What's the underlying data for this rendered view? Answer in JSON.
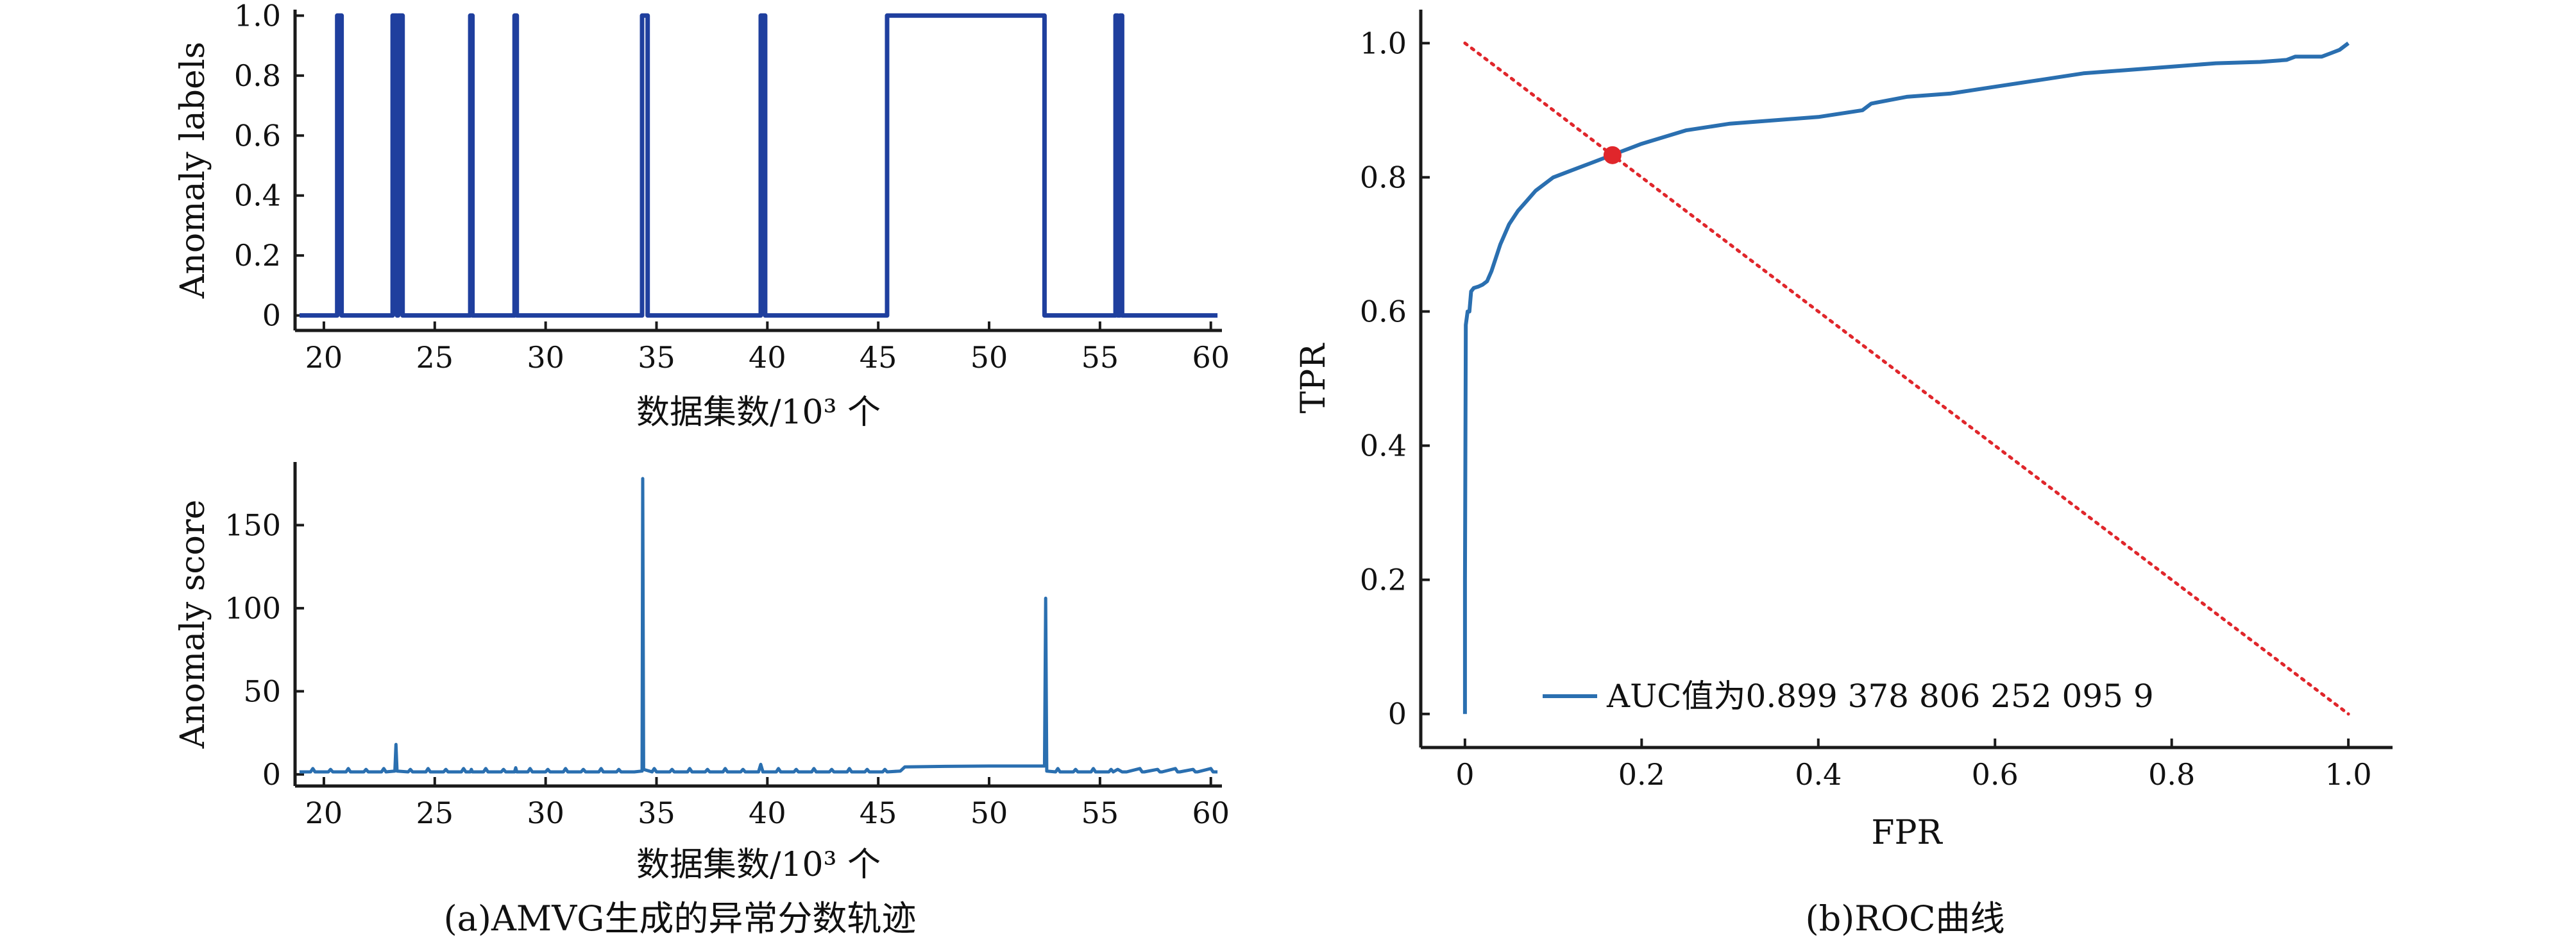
{
  "colors": {
    "axis": "#1a1a1a",
    "label_line": "#1f3f9e",
    "score_line": "#2a6fb0",
    "roc_line": "#2a6fb0",
    "diagonal": "#e0262b",
    "point": "#e0262b"
  },
  "captions": {
    "a": "(a)AMVG生成的异常分数轨迹",
    "b": "(b)ROC曲线"
  },
  "chart_data": [
    {
      "id": "labels",
      "type": "line",
      "ylabel": "Anomaly labels",
      "xlabel": "数据集数/10³ 个",
      "xlim": [
        18.7,
        60.5
      ],
      "ylim": [
        -0.05,
        1.02
      ],
      "xticks": [
        20,
        25,
        30,
        35,
        40,
        45,
        50,
        55,
        60
      ],
      "xtick_labels": [
        "20",
        "25",
        "30",
        "35",
        "40",
        "45",
        "50",
        "55",
        "60"
      ],
      "yticks": [
        0,
        0.2,
        0.4,
        0.6,
        0.8,
        1.0
      ],
      "ytick_labels": [
        "0",
        "0.2",
        "0.4",
        "0.6",
        "0.8",
        "1.0"
      ],
      "series": [
        {
          "x": [
            18.9,
            20.6,
            20.6,
            20.8,
            20.8,
            23.1,
            23.1,
            23.3,
            23.3,
            23.35,
            23.35,
            23.55,
            23.55,
            26.6,
            26.6,
            26.7,
            26.7,
            28.6,
            28.6,
            28.7,
            28.7,
            34.35,
            34.35,
            34.6,
            34.6,
            39.7,
            39.7,
            39.9,
            39.9,
            45.4,
            45.4,
            52.5,
            52.5,
            55.7,
            55.7,
            55.8,
            55.8,
            55.9,
            55.9,
            56.0,
            56.0,
            60.3
          ],
          "y": [
            0,
            0,
            1,
            1,
            0,
            0,
            1,
            1,
            0,
            0,
            1,
            1,
            0,
            0,
            1,
            1,
            0,
            0,
            1,
            1,
            0,
            0,
            1,
            1,
            0,
            0,
            1,
            1,
            0,
            0,
            1,
            1,
            0,
            0,
            1,
            1,
            0,
            0,
            1,
            1,
            0,
            0
          ]
        }
      ]
    },
    {
      "id": "score",
      "type": "line",
      "ylabel": "Anomaly score",
      "xlabel": "数据集数/10³ 个",
      "xlim": [
        18.7,
        60.5
      ],
      "ylim": [
        -7,
        188
      ],
      "xticks": [
        20,
        25,
        30,
        35,
        40,
        45,
        50,
        55,
        60
      ],
      "xtick_labels": [
        "20",
        "25",
        "30",
        "35",
        "40",
        "45",
        "50",
        "55",
        "60"
      ],
      "yticks": [
        0,
        50,
        100,
        150
      ],
      "ytick_labels": [
        "0",
        "50",
        "100",
        "150"
      ],
      "series": [
        {
          "x": [
            18.9,
            19.4,
            19.5,
            19.6,
            20.2,
            20.3,
            20.4,
            21.0,
            21.1,
            21.2,
            21.8,
            21.9,
            22.0,
            22.6,
            22.7,
            22.8,
            23.2,
            23.25,
            23.3,
            23.8,
            23.9,
            24.0,
            24.6,
            24.7,
            24.8,
            25.4,
            25.5,
            25.6,
            26.2,
            26.3,
            26.4,
            26.6,
            26.65,
            26.7,
            27.2,
            27.3,
            27.4,
            28.0,
            28.1,
            28.2,
            28.6,
            28.65,
            28.7,
            29.2,
            29.3,
            29.4,
            30.0,
            30.1,
            30.2,
            30.8,
            30.9,
            31.0,
            31.6,
            31.7,
            31.8,
            32.4,
            32.5,
            32.6,
            33.2,
            33.3,
            33.4,
            34.0,
            34.35,
            34.38,
            34.42,
            34.8,
            34.9,
            35.0,
            35.6,
            35.7,
            35.8,
            36.4,
            36.5,
            36.6,
            37.2,
            37.3,
            37.4,
            38.0,
            38.1,
            38.2,
            38.8,
            38.9,
            39.0,
            39.6,
            39.7,
            39.8,
            40.4,
            40.5,
            40.6,
            41.2,
            41.3,
            41.4,
            42.0,
            42.1,
            42.2,
            42.8,
            42.9,
            43.0,
            43.6,
            43.7,
            43.8,
            44.4,
            44.5,
            44.6,
            45.2,
            45.3,
            45.4,
            46.0,
            46.2,
            48.0,
            50.0,
            52.4,
            52.5,
            52.55,
            52.6,
            53.0,
            53.1,
            53.2,
            53.8,
            53.9,
            54.0,
            54.6,
            54.7,
            54.8,
            55.4,
            55.5,
            55.6,
            55.8,
            56.0,
            56.2,
            56.8,
            56.9,
            57.0,
            57.6,
            57.7,
            57.8,
            58.4,
            58.5,
            58.6,
            59.2,
            59.3,
            59.4,
            60.0,
            60.1,
            60.3
          ],
          "y": [
            1.5,
            1.5,
            3.5,
            1.5,
            1.5,
            3.0,
            1.5,
            1.5,
            3.5,
            1.5,
            1.5,
            3.0,
            1.5,
            1.5,
            3.5,
            1.5,
            2.0,
            18.0,
            2.0,
            1.5,
            3.0,
            1.5,
            1.5,
            3.5,
            1.5,
            1.5,
            3.0,
            1.5,
            1.5,
            3.5,
            1.5,
            1.5,
            3.0,
            1.5,
            1.5,
            3.5,
            1.5,
            1.5,
            3.0,
            1.5,
            1.5,
            4.0,
            1.5,
            1.5,
            3.5,
            1.5,
            1.5,
            3.0,
            1.5,
            1.5,
            3.5,
            1.5,
            1.5,
            3.0,
            1.5,
            1.5,
            3.5,
            1.5,
            1.5,
            3.0,
            1.5,
            1.5,
            2.0,
            178.0,
            3.0,
            1.5,
            3.5,
            1.5,
            1.5,
            3.0,
            1.5,
            1.5,
            3.5,
            1.5,
            1.5,
            3.0,
            1.5,
            1.5,
            3.5,
            1.5,
            1.5,
            3.0,
            1.5,
            1.5,
            6.0,
            1.5,
            1.5,
            3.5,
            1.5,
            1.5,
            3.0,
            1.5,
            1.5,
            3.5,
            1.5,
            1.5,
            3.0,
            1.5,
            1.5,
            3.5,
            1.5,
            1.5,
            3.0,
            1.5,
            1.5,
            3.0,
            1.5,
            2.0,
            4.5,
            4.8,
            5.0,
            5.0,
            5.0,
            106.0,
            2.0,
            1.5,
            3.5,
            1.5,
            1.5,
            3.0,
            1.5,
            1.5,
            3.5,
            1.5,
            1.5,
            3.0,
            1.5,
            3.0,
            1.5,
            1.5,
            3.5,
            1.5,
            1.5,
            3.0,
            1.5,
            1.5,
            3.5,
            1.5,
            1.5,
            3.0,
            1.5,
            1.5,
            3.5,
            1.5,
            1.5
          ]
        }
      ]
    },
    {
      "id": "roc",
      "type": "line",
      "ylabel": "TPR",
      "xlabel": "FPR",
      "xlim": [
        -0.05,
        1.05
      ],
      "ylim": [
        -0.05,
        1.05
      ],
      "xticks": [
        0,
        0.2,
        0.4,
        0.6,
        0.8,
        1.0
      ],
      "xtick_labels": [
        "0",
        "0.2",
        "0.4",
        "0.6",
        "0.8",
        "1.0"
      ],
      "yticks": [
        0,
        0.2,
        0.4,
        0.6,
        0.8,
        1.0
      ],
      "ytick_labels": [
        "0",
        "0.2",
        "0.4",
        "0.6",
        "0.8",
        "1.0"
      ],
      "legend": {
        "label": "AUC值为0.899 378 806 252 095 9",
        "position": "bottom-left"
      },
      "series": [
        {
          "name": "AUC值为0.899 378 806 252 095 9",
          "x": [
            0,
            0,
            0.001,
            0.003,
            0.005,
            0.007,
            0.01,
            0.015,
            0.02,
            0.025,
            0.03,
            0.035,
            0.04,
            0.05,
            0.06,
            0.07,
            0.08,
            0.1,
            0.12,
            0.14,
            0.16,
            0.18,
            0.2,
            0.25,
            0.3,
            0.35,
            0.4,
            0.45,
            0.46,
            0.5,
            0.55,
            0.6,
            0.65,
            0.7,
            0.75,
            0.8,
            0.85,
            0.9,
            0.93,
            0.94,
            0.97,
            0.98,
            0.99,
            1.0
          ],
          "y": [
            0,
            0.2,
            0.58,
            0.6,
            0.6,
            0.63,
            0.635,
            0.637,
            0.64,
            0.645,
            0.66,
            0.68,
            0.7,
            0.73,
            0.75,
            0.765,
            0.78,
            0.8,
            0.81,
            0.82,
            0.83,
            0.84,
            0.85,
            0.87,
            0.88,
            0.885,
            0.89,
            0.9,
            0.91,
            0.92,
            0.925,
            0.935,
            0.945,
            0.955,
            0.96,
            0.965,
            0.97,
            0.972,
            0.975,
            0.98,
            0.98,
            0.985,
            0.99,
            1.0
          ]
        }
      ],
      "diagonal": {
        "x": [
          0,
          1
        ],
        "y": [
          1,
          0
        ]
      },
      "point": {
        "x": 0.167,
        "y": 0.833
      }
    }
  ]
}
